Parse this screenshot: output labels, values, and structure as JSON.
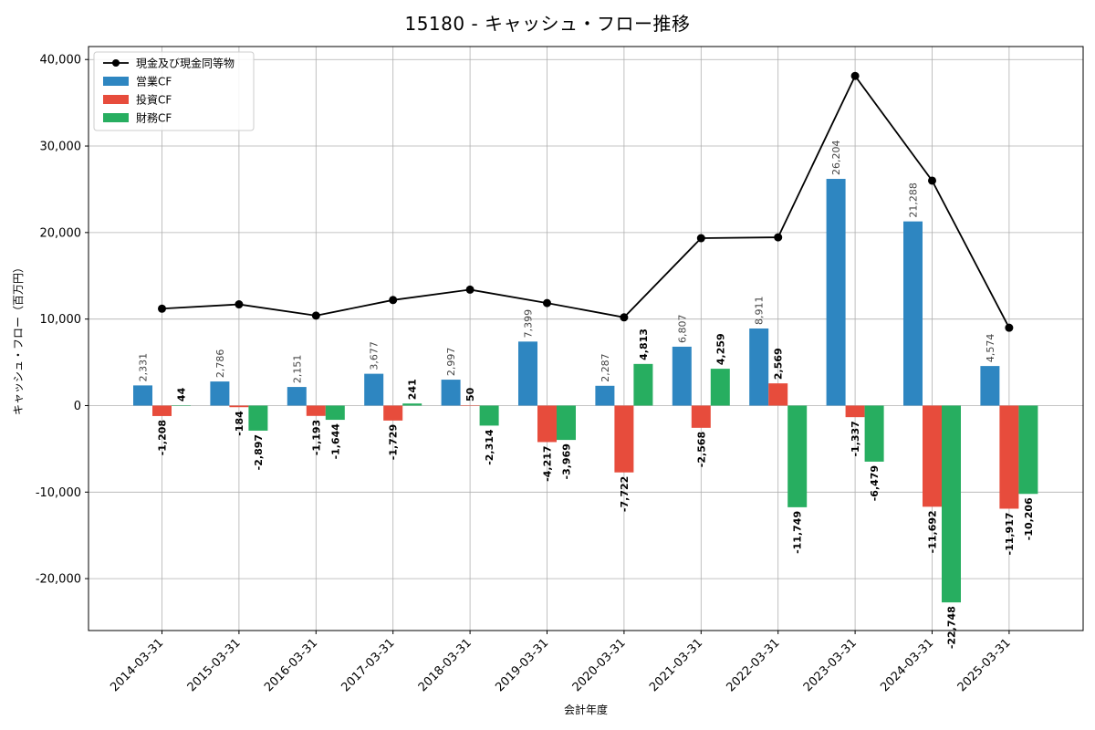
{
  "chart_data": {
    "type": "bar",
    "title": "15180 - キャッシュ・フロー推移",
    "xlabel": "会計年度",
    "ylabel": "キャッシュ・フロー（百万円）",
    "ylim": [
      -26000,
      41500
    ],
    "yticks": [
      -20000,
      -10000,
      0,
      10000,
      20000,
      30000,
      40000
    ],
    "ytick_labels": [
      "-20,000",
      "-10,000",
      "0",
      "10,000",
      "20,000",
      "30,000",
      "40,000"
    ],
    "grid": true,
    "legend_position": "top-left",
    "categories": [
      "2014-03-31",
      "2015-03-31",
      "2016-03-31",
      "2017-03-31",
      "2018-03-31",
      "2019-03-31",
      "2020-03-31",
      "2021-03-31",
      "2022-03-31",
      "2023-03-31",
      "2024-03-31",
      "2025-03-31"
    ],
    "series": [
      {
        "name": "営業CF",
        "kind": "bar",
        "color": "#2e86c1",
        "values": [
          2331,
          2786,
          2151,
          3677,
          2997,
          7399,
          2287,
          6807,
          8911,
          26204,
          21288,
          4574
        ],
        "labels": [
          "2,331",
          "2,786",
          "2,151",
          "3,677",
          "2,997",
          "7,399",
          "2,287",
          "6,807",
          "8,911",
          "26,204",
          "21,288",
          "4,574"
        ]
      },
      {
        "name": "投資CF",
        "kind": "bar",
        "color": "#e74c3c",
        "values": [
          -1208,
          -184,
          -1193,
          -1729,
          50,
          -4217,
          -7722,
          -2568,
          2569,
          -1337,
          -11692,
          -11917
        ],
        "labels": [
          "-1,208",
          "-184",
          "-1,193",
          "-1,729",
          "50",
          "-4,217",
          "-7,722",
          "-2,568",
          "2,569",
          "-1,337",
          "-11,692",
          "-11,917"
        ]
      },
      {
        "name": "財務CF",
        "kind": "bar",
        "color": "#27ae60",
        "values": [
          44,
          -2897,
          -1644,
          241,
          -2314,
          -3969,
          4813,
          4259,
          -11749,
          -6479,
          -22748,
          -10206
        ],
        "labels": [
          "44",
          "-2,897",
          "-1,644",
          "241",
          "-2,314",
          "-3,969",
          "4,813",
          "4,259",
          "-11,749",
          "-6,479",
          "-22,748",
          "-10,206"
        ]
      },
      {
        "name": "現金及び現金同等物",
        "kind": "line",
        "color": "#000000",
        "values": [
          11200,
          11700,
          10400,
          12200,
          13400,
          11850,
          10200,
          19350,
          19450,
          38100,
          26000,
          9000
        ]
      }
    ]
  }
}
